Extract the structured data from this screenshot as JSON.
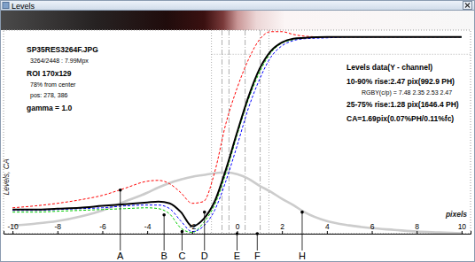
{
  "window_title": "Levels",
  "chart_data": {
    "type": "line",
    "xlabel": "pixels",
    "ylabel": "Levels, CA",
    "xlim": [
      -10.4,
      10.4
    ],
    "ylim": [
      -0.14,
      1.04
    ],
    "xticks": [
      -10,
      -8,
      -6,
      -4,
      -2,
      0,
      2,
      4,
      6,
      8,
      10
    ],
    "tick_labels": "x",
    "grid": false,
    "x": [
      -10,
      -9,
      -8,
      -7,
      -6,
      -5,
      -4,
      -3.5,
      -3,
      -2.5,
      -2,
      -1.5,
      -1,
      -0.5,
      0,
      0.5,
      1,
      1.5,
      2,
      2.5,
      3,
      4,
      5,
      6,
      7,
      8,
      9,
      10
    ],
    "series": [
      {
        "color": "#cccccc",
        "line_style": "solid",
        "values": [
          -0.092,
          -0.082,
          -0.067,
          -0.041,
          -0.005,
          0.046,
          0.097,
          0.128,
          0.154,
          0.174,
          0.19,
          0.2,
          0.21,
          0.215,
          0.205,
          0.179,
          0.138,
          0.103,
          0.062,
          0.026,
          -0.015,
          -0.067,
          -0.092,
          -0.108,
          -0.118,
          -0.128,
          -0.133,
          -0.138
        ]
      },
      {
        "color": "#ff0000",
        "line_style": "dashed",
        "values": [
          0.01,
          0.021,
          0.036,
          0.056,
          0.082,
          0.123,
          0.164,
          0.169,
          0.149,
          0.097,
          0.036,
          0.046,
          0.215,
          0.497,
          0.703,
          0.867,
          0.985,
          1.031,
          1.031,
          1.015,
          1.005,
          1,
          1,
          1,
          1,
          1,
          1,
          1
        ]
      },
      {
        "color": "#00cc00",
        "line_style": "dashed",
        "values": [
          -0.015,
          -0.015,
          -0.01,
          -0.005,
          0,
          0.005,
          0.01,
          0.005,
          -0.026,
          -0.108,
          -0.133,
          -0.077,
          0.026,
          0.21,
          0.431,
          0.636,
          0.795,
          0.908,
          0.964,
          0.985,
          0.995,
          1,
          1,
          1,
          1,
          1,
          1,
          1
        ]
      },
      {
        "color": "#0000ff",
        "line_style": "dashed",
        "values": [
          -0.005,
          -0.005,
          0,
          0.005,
          0.01,
          0.021,
          0.026,
          0.026,
          0.005,
          -0.067,
          -0.128,
          -0.097,
          -0.005,
          0.164,
          0.369,
          0.585,
          0.754,
          0.882,
          0.949,
          0.979,
          0.99,
          0.995,
          1,
          1,
          1,
          1,
          1,
          1
        ]
      },
      {
        "color": "#000000",
        "line_style": "solid",
        "values": [
          0,
          0,
          0.005,
          0.01,
          0.021,
          0.031,
          0.041,
          0.046,
          0.036,
          -0.015,
          -0.097,
          -0.056,
          0.046,
          0.231,
          0.446,
          0.651,
          0.815,
          0.918,
          0.969,
          0.99,
          0.995,
          1,
          1,
          1,
          1,
          1,
          1,
          1
        ]
      }
    ],
    "vlines": [
      -1.14,
      -0.67,
      -0.36,
      0.36,
      1.03,
      1.42
    ],
    "hlines": [
      0.9
    ],
    "annotations": [
      {
        "label": "A",
        "x": -5.2,
        "y": 0.113
      },
      {
        "label": "B",
        "x": -3.25,
        "y": -0.031
      },
      {
        "label": "C",
        "x": -2.45,
        "y": -0.128
      },
      {
        "label": "D",
        "x": -1.45,
        "y": -0.015
      },
      {
        "label": "E",
        "x": 0,
        "y": -0.14
      },
      {
        "label": "F",
        "x": 0.9,
        "y": -0.14
      },
      {
        "label": "H",
        "x": 2.9,
        "y": -0.015
      }
    ],
    "info_left": [
      "SP35RES3264F.JPG",
      "3264/2448 : 7.99Mpx",
      "ROI 170x129",
      "78% from center",
      "pos: 278, 386",
      "gamma = 1.0"
    ],
    "info_right": [
      "Levels data(Y - channel)",
      "10-90% rise:2.47 pix(992.9 PH)",
      "RGBY(c/p) = 7.48 2.35 2.53 2.47",
      "25-75% rise:1.28 pix(1646.4 PH)",
      "CA=1.69pix(0.07%PH/0.11%fc)"
    ]
  }
}
